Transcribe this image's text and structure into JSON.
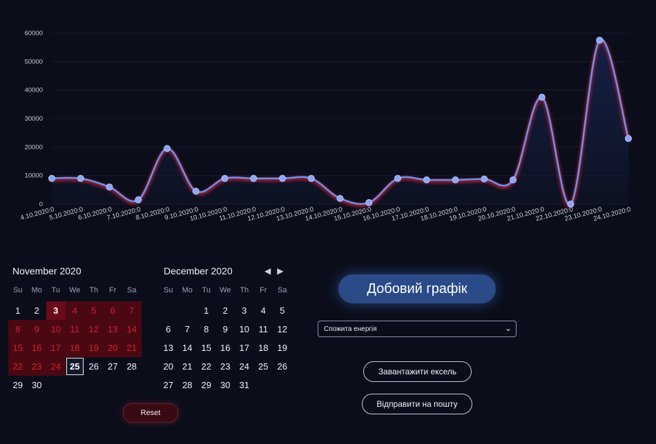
{
  "chart_data": {
    "type": "area",
    "x": [
      "4.10.2020:0",
      "5.10.2020:0",
      "6.10.2020:0",
      "7.10.2020:0",
      "8.10.2020:0",
      "9.10.2020:0",
      "10.10.2020:0",
      "11.10.2020:0",
      "12.10.2020:0",
      "13.10.2020:0",
      "14.10.2020:0",
      "15.10.2020:0",
      "16.10.2020:0",
      "17.10.2020:0",
      "18.10.2020:0",
      "19.10.2020:0",
      "20.10.2020:0",
      "21.10.2020:0",
      "22.10.2020:0",
      "23.10.2020:0",
      "24.10.2020:0"
    ],
    "values": [
      9000,
      9000,
      6000,
      1500,
      19500,
      4500,
      9000,
      9000,
      9000,
      9000,
      2000,
      500,
      9000,
      8500,
      8500,
      8800,
      8500,
      37500,
      0,
      57500,
      23000
    ],
    "yticks": [
      "0",
      "10000",
      "20000",
      "30000",
      "40000",
      "50000",
      "60000"
    ],
    "ylim": [
      0,
      60000
    ],
    "grid": true,
    "colors": {
      "line": "#6f8fe6",
      "glow": "#c0213a",
      "point": "#8aa6f4",
      "fill": "#16224a"
    }
  },
  "calendar": {
    "weekday_labels": [
      "Su",
      "Mo",
      "Tu",
      "We",
      "Th",
      "Fr",
      "Sa"
    ],
    "months": [
      {
        "title": "November 2020",
        "lead_blank": 0,
        "days": 30,
        "range_start": 3,
        "range_end": 25
      },
      {
        "title": "December 2020",
        "lead_blank": 2,
        "days": 31
      }
    ],
    "reset_label": "Reset"
  },
  "controls": {
    "title_button": "Добовий графік",
    "select_value": "Спожита енергія",
    "download_button": "Завантажити ексель",
    "email_button": "Відправити на пошту"
  }
}
